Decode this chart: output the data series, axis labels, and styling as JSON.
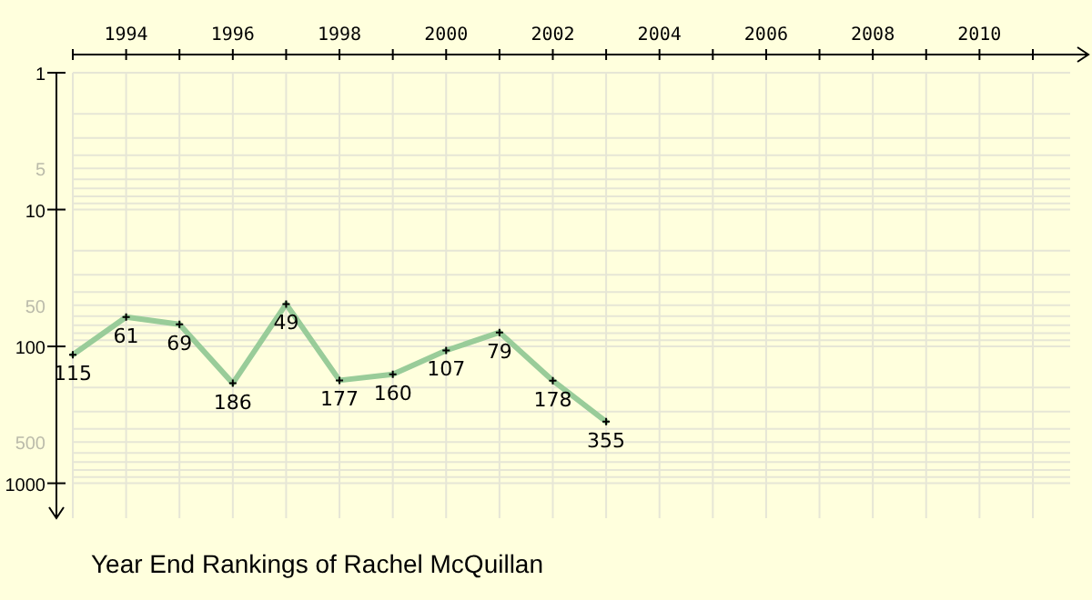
{
  "chart_data": {
    "type": "line",
    "title": "Year End Rankings of Rachel McQuillan",
    "x": [
      1993,
      1994,
      1995,
      1996,
      1997,
      1998,
      1999,
      2000,
      2001,
      2002,
      2003
    ],
    "series": [
      {
        "color": "#99cc99",
        "values": [
          115,
          61,
          69,
          186,
          49,
          177,
          160,
          107,
          79,
          178,
          355
        ]
      }
    ],
    "xlim": [
      1993,
      2011.7
    ],
    "xticks": [
      {
        "value": 1993,
        "label": null
      },
      1994,
      {
        "value": 1995,
        "label": null
      },
      1996,
      {
        "value": 1997,
        "label": null
      },
      1998,
      {
        "value": 1999,
        "label": null
      },
      2000,
      {
        "value": 2001,
        "label": null
      },
      2002,
      {
        "value": 2003,
        "label": null
      },
      2004,
      {
        "value": 2005,
        "label": null
      },
      2006,
      {
        "value": 2007,
        "label": null
      },
      2008,
      {
        "value": 2009,
        "label": null
      },
      2010,
      {
        "value": 2011,
        "label": null
      }
    ],
    "ylim": [
      1800,
      1
    ],
    "yticks": [
      1,
      5,
      10,
      50,
      100,
      500,
      1000
    ],
    "log": true,
    "grid": true,
    "marker": "cross",
    "line_style": "solid",
    "data_labels": true
  }
}
